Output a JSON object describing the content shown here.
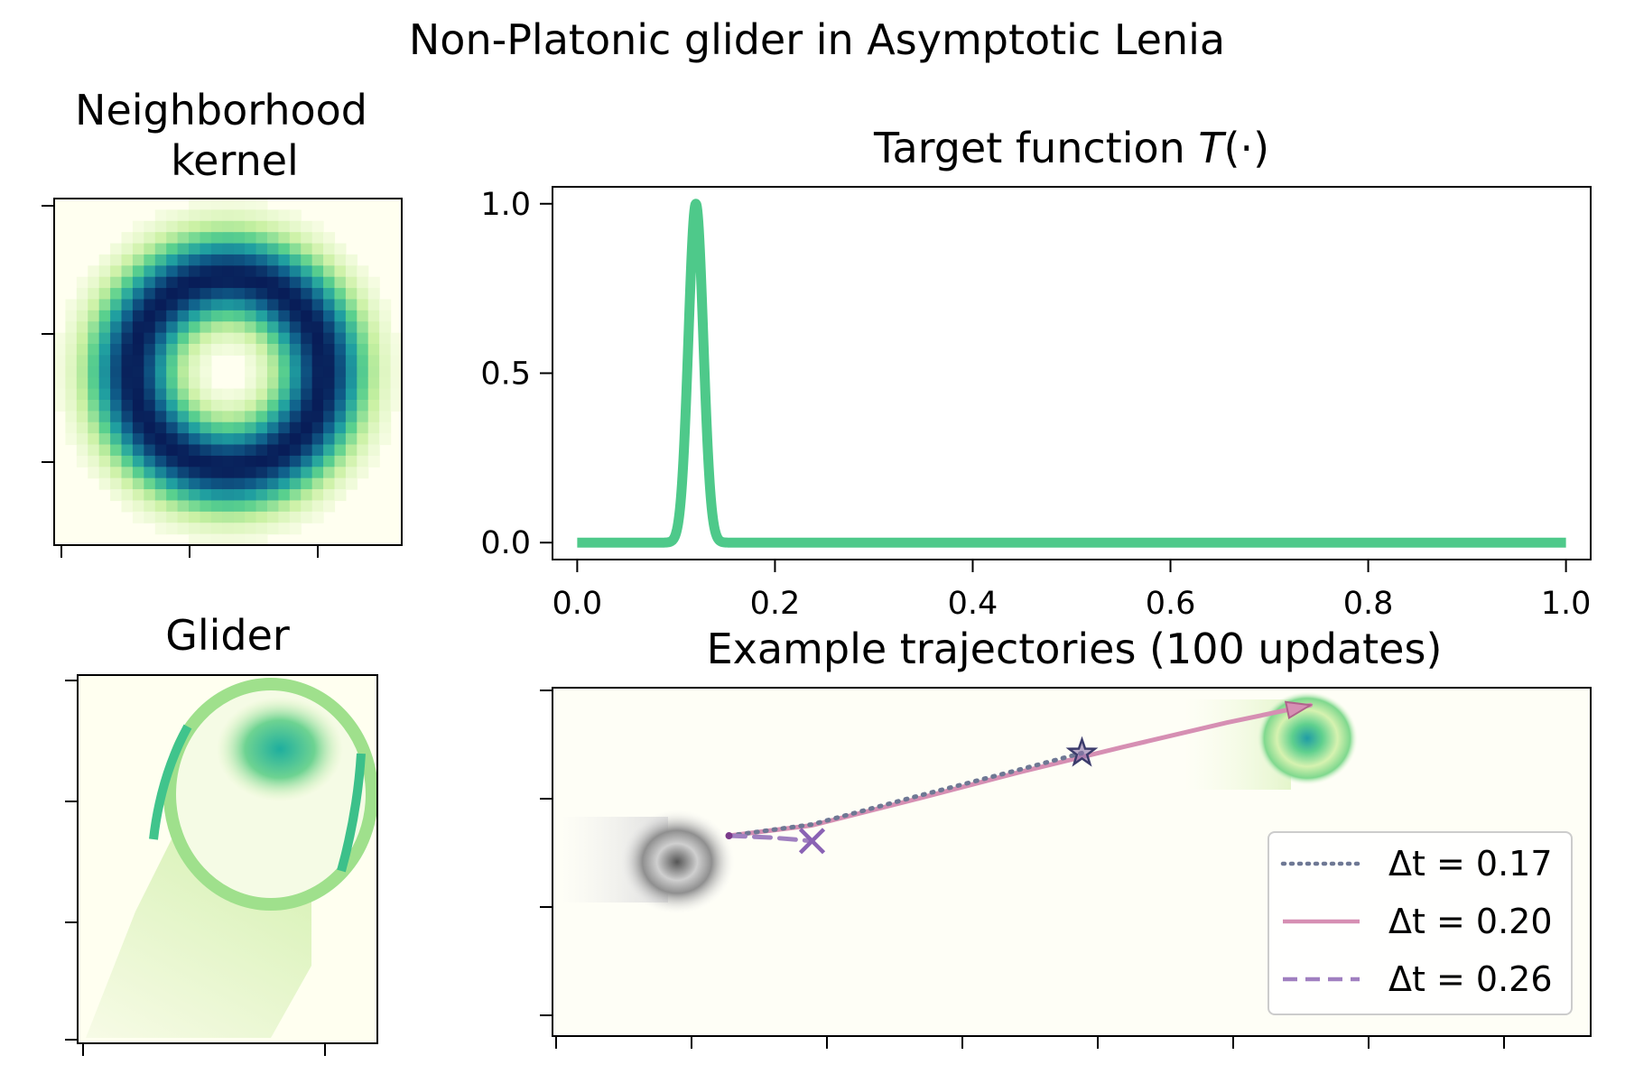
{
  "figure_title": "Non-Platonic glider in Asymptotic Lenia",
  "chart_data": [
    {
      "type": "heatmap",
      "id": "kernel",
      "title_lines": [
        "Neighborhood",
        "kernel"
      ],
      "description_values": {
        "grid_size": 31,
        "ring_radius": 0.55,
        "ring_width": 0.17
      },
      "colormap": [
        "#fffff0",
        "#c8f0a0",
        "#5ad08e",
        "#20a0a0",
        "#10608c",
        "#081d58"
      ]
    },
    {
      "type": "line",
      "id": "target",
      "title_prefix": "Target function ",
      "title_italic": "T",
      "title_suffix": "(·)",
      "function": "gaussian",
      "mu": 0.12,
      "sigma": 0.0075,
      "amplitude": 1.0,
      "xlim": [
        -0.025,
        1.025
      ],
      "ylim": [
        -0.05,
        1.05
      ],
      "xticks": [
        "0.0",
        "0.2",
        "0.4",
        "0.6",
        "0.8",
        "1.0"
      ],
      "xtick_values": [
        0,
        0.2,
        0.4,
        0.6,
        0.8,
        1.0
      ],
      "yticks": [
        "0.0",
        "0.5",
        "1.0"
      ],
      "ytick_values": [
        0,
        0.5,
        1.0
      ],
      "color": "#4ec98a"
    },
    {
      "type": "heatmap",
      "id": "glider",
      "title": "Glider",
      "colormap": [
        "#fffff0",
        "#c8f0a0",
        "#5ad08e",
        "#20b0a0"
      ]
    },
    {
      "type": "line",
      "id": "trajectories",
      "title": "Example trajectories (100 updates)",
      "xlim": [
        0,
        100
      ],
      "ylim": [
        0,
        40
      ],
      "start": [
        17,
        23
      ],
      "series": [
        {
          "name": "Δt = 0.17",
          "delta": "Δt",
          "value": "0.17",
          "style": "dotted",
          "color": "#6e7894",
          "points": [
            [
              17,
              23
            ],
            [
              25,
              24.3
            ],
            [
              35,
              27.5
            ],
            [
              45,
              30.6
            ],
            [
              51,
              32.5
            ]
          ],
          "end_marker": "star"
        },
        {
          "name": "Δt = 0.20",
          "delta": "Δt",
          "value": "0.20",
          "style": "solid",
          "color": "#d68fb3",
          "points": [
            [
              17,
              23
            ],
            [
              25,
              24.2
            ],
            [
              35,
              27.2
            ],
            [
              45,
              30.3
            ],
            [
              55,
              33.2
            ],
            [
              65,
              36
            ],
            [
              73,
              38
            ]
          ],
          "end_marker": "arrow"
        },
        {
          "name": "Δt = 0.26",
          "delta": "Δt",
          "value": "0.26",
          "style": "dashed",
          "color": "#a080c0",
          "points": [
            [
              17,
              23
            ],
            [
              21,
              22.8
            ],
            [
              25,
              22.4
            ]
          ],
          "end_marker": "x"
        }
      ],
      "legend_position": "lower right"
    }
  ]
}
